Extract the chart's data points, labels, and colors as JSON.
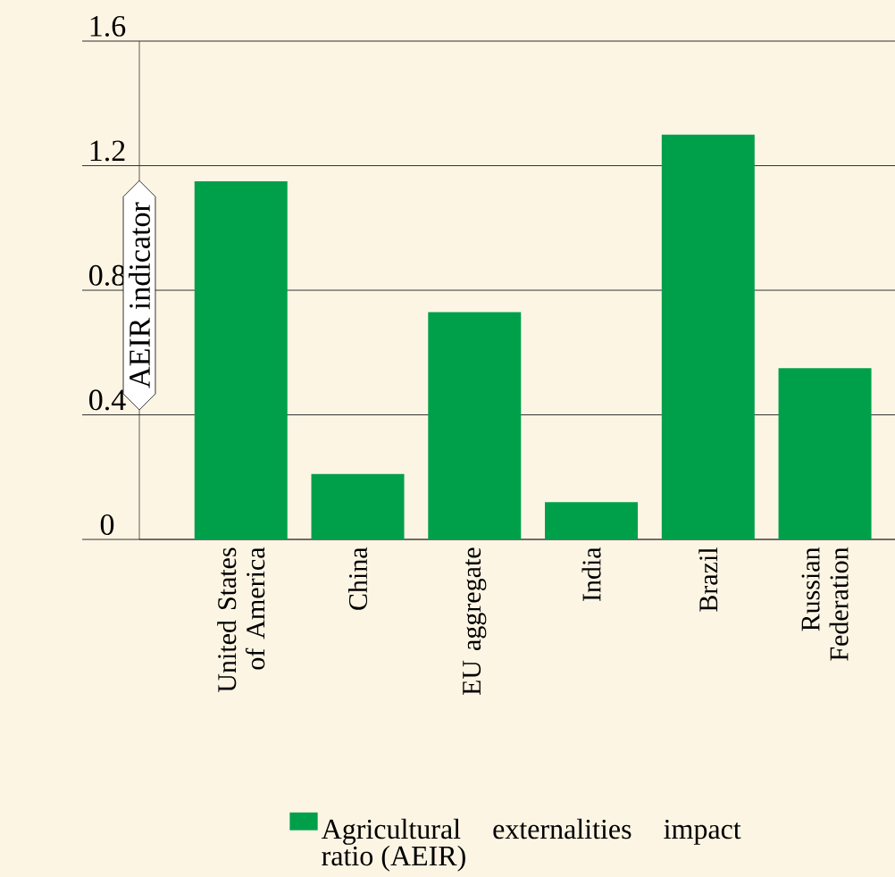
{
  "chart_data": {
    "type": "bar",
    "ylabel": "AEIR indicator",
    "categories": [
      "United States of America",
      "China",
      "EU aggregate",
      "India",
      "Brazil",
      "Russian Federation"
    ],
    "series": [
      {
        "name": "Agricultural externalities impact ratio (AEIR)",
        "color": "#00a04b",
        "values": [
          1.15,
          0.21,
          0.73,
          0.12,
          1.3,
          0.55
        ]
      }
    ],
    "ylim": [
      0,
      1.6
    ],
    "yticks": [
      0,
      0.4,
      0.8,
      1.2,
      1.6
    ],
    "grid": "y",
    "legend": "bottom"
  }
}
